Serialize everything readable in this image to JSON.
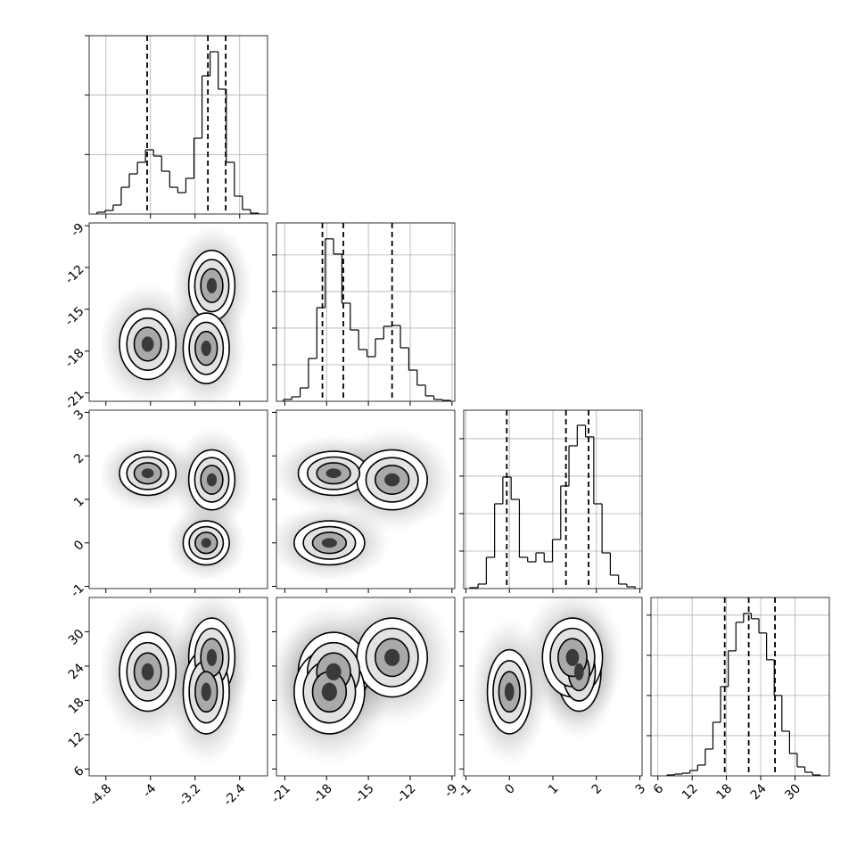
{
  "chart_data": {
    "type": "corner",
    "grid": true,
    "color": "#000000",
    "parameters": [
      {
        "lim": [
          -5.1,
          -1.9
        ],
        "ticks": [
          -4.8,
          -4.0,
          -3.2,
          -2.4
        ],
        "quantiles": [
          -4.06,
          -2.97,
          -2.65
        ],
        "hist": {
          "bins": [
            -4.96,
            -4.815,
            -4.67,
            -4.525,
            -4.38,
            -4.235,
            -4.09,
            -3.945,
            -3.8,
            -3.655,
            -3.51,
            -3.365,
            -3.22,
            -3.075,
            -2.93,
            -2.785,
            -2.64,
            -2.495,
            -2.35,
            -2.205,
            -2.06
          ],
          "counts": [
            6,
            12,
            30,
            90,
            135,
            174,
            216,
            195,
            144,
            90,
            72,
            120,
            255,
            465,
            546,
            420,
            174,
            60,
            15,
            3
          ],
          "ylim": [
            0,
            600
          ],
          "yticks": [
            200,
            400,
            600
          ]
        }
      },
      {
        "lim": [
          -21.6,
          -8.8
        ],
        "ticks": [
          -21,
          -18,
          -15,
          -12,
          -9
        ],
        "quantiles": [
          -18.3,
          -16.8,
          -13.3
        ],
        "hist": {
          "bins": [
            -21.1,
            -20.5,
            -19.9,
            -19.3,
            -18.7,
            -18.1,
            -17.5,
            -16.9,
            -16.3,
            -15.7,
            -15.1,
            -14.5,
            -13.9,
            -13.3,
            -12.7,
            -12.1,
            -11.5,
            -10.9,
            -10.3,
            -9.7,
            -9.1
          ],
          "counts": [
            20,
            49,
            146,
            468,
            1024,
            1776,
            1610,
            1073,
            780,
            566,
            488,
            683,
            820,
            829,
            585,
            341,
            176,
            59,
            20,
            10
          ],
          "ylim": [
            0,
            1950
          ],
          "yticks": [
            400,
            800,
            1200,
            1600
          ]
        }
      },
      {
        "lim": [
          -1.05,
          3.05
        ],
        "ticks": [
          -1,
          0,
          1,
          2,
          3
        ],
        "quantiles": [
          -0.06,
          1.3,
          1.82
        ],
        "hist": {
          "bins": [
            -0.91,
            -0.72,
            -0.53,
            -0.34,
            -0.15,
            0.04,
            0.23,
            0.42,
            0.61,
            0.8,
            0.99,
            1.18,
            1.37,
            1.56,
            1.75,
            1.94,
            2.13,
            2.32,
            2.51,
            2.7,
            2.89
          ],
          "counts": [
            12,
            60,
            417,
            1131,
            1488,
            1190,
            417,
            357,
            476,
            357,
            655,
            1369,
            1905,
            2179,
            2024,
            1131,
            476,
            179,
            60,
            24
          ],
          "ylim": [
            0,
            2380
          ],
          "yticks": [
            500,
            1000,
            1500,
            2000
          ]
        }
      },
      {
        "lim": [
          4.8,
          36
        ],
        "ticks": [
          6,
          12,
          18,
          24,
          30
        ],
        "quantiles": [
          17.7,
          21.9,
          26.5
        ],
        "hist": {
          "bins": [
            7.6,
            8.94,
            10.28,
            11.62,
            12.96,
            14.3,
            15.64,
            16.98,
            18.32,
            19.66,
            21,
            22.34,
            23.68,
            25.02,
            26.36,
            27.7,
            29.04,
            30.38,
            31.72,
            33.06,
            34.4
          ],
          "counts": [
            22,
            44,
            67,
            133,
            267,
            667,
            1333,
            2222,
            3111,
            3822,
            4044,
            3911,
            3556,
            2889,
            2000,
            1111,
            556,
            222,
            89,
            22
          ],
          "ylim": [
            0,
            4440
          ],
          "yticks": [
            1000,
            2000,
            3000,
            4000
          ]
        }
      }
    ],
    "components": [
      {
        "mean": [
          -4.05,
          -17.5,
          1.6,
          23
        ],
        "sd": [
          0.22,
          1.1,
          0.22,
          3.0
        ]
      },
      {
        "mean": [
          -2.9,
          -13.3,
          1.45,
          25.5
        ],
        "sd": [
          0.18,
          1.1,
          0.3,
          3.0
        ]
      },
      {
        "mean": [
          -3.0,
          -17.8,
          0.0,
          19.5
        ],
        "sd": [
          0.18,
          1.1,
          0.22,
          3.2
        ]
      }
    ]
  }
}
